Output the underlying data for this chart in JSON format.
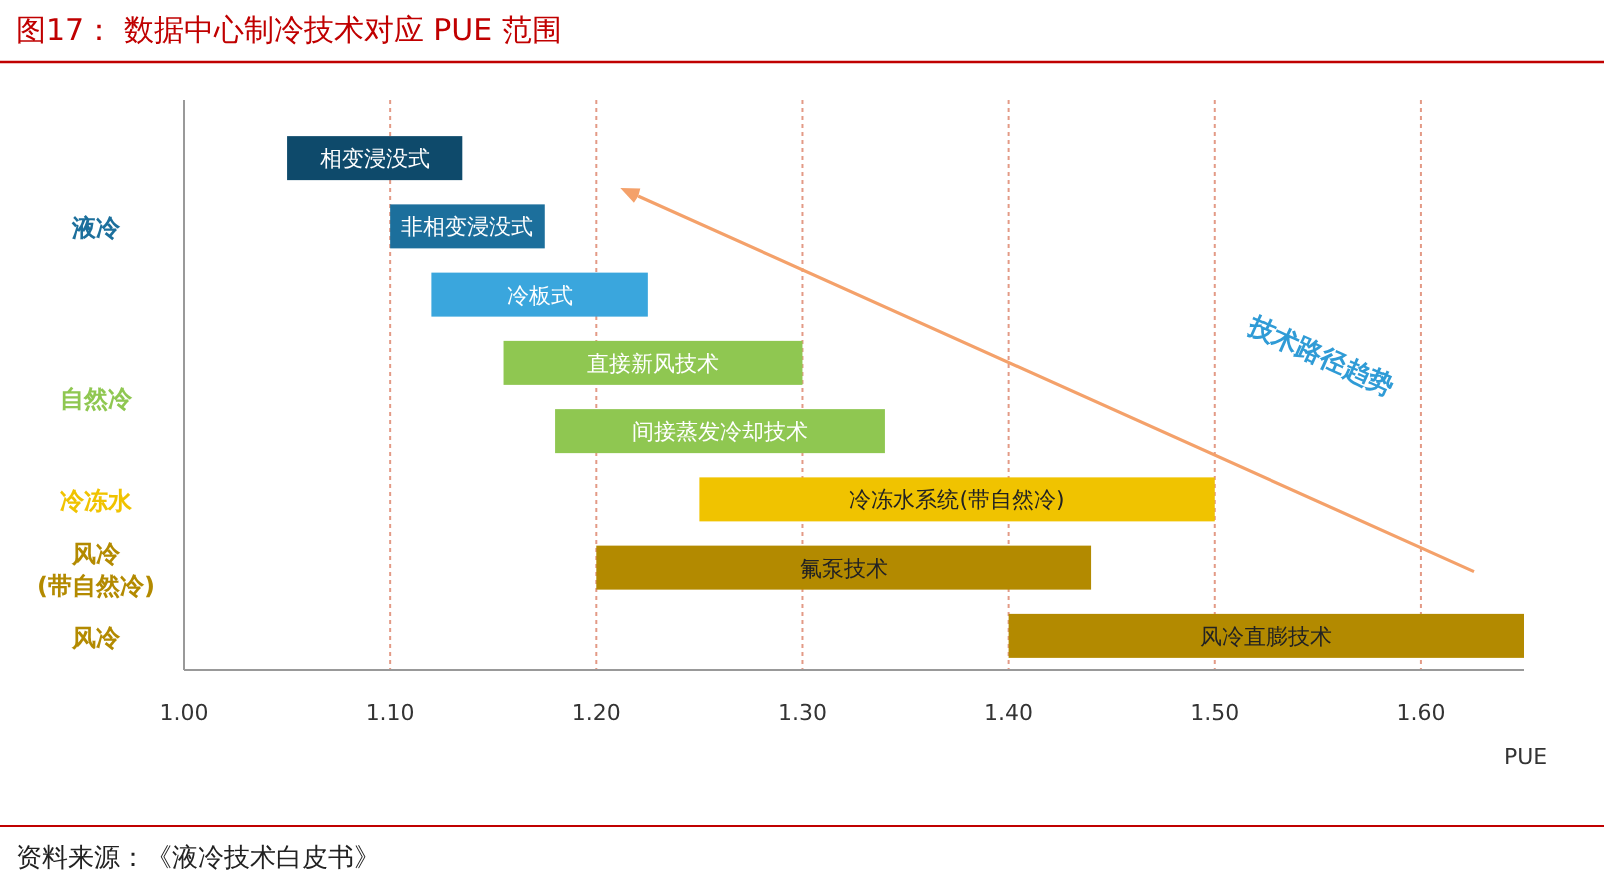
{
  "chart_data": {
    "type": "bar",
    "orientation": "horizontal",
    "title": "图17：  数据中心制冷技术对应 PUE 范围",
    "xlabel": "PUE",
    "categories": [
      "相变浸没式",
      "非相变浸没式",
      "冷板式",
      "直接新风技术",
      "间接蒸发冷却技术",
      "冷冻水系统(带自然冷)",
      "氟泵技术",
      "风冷直膨技术"
    ],
    "base": [
      1.05,
      1.1,
      1.12,
      1.155,
      1.18,
      1.25,
      1.2,
      1.4
    ],
    "values": [
      0.085,
      0.075,
      0.105,
      0.145,
      0.16,
      0.25,
      0.24,
      0.25
    ],
    "colors": [
      "#0e4a6b",
      "#1c6f9c",
      "#3aa6dd",
      "#8fc751",
      "#8fc751",
      "#f0c300",
      "#b38a00",
      "#b38a00"
    ],
    "xlim": [
      1.0,
      1.65
    ],
    "xticks": [
      {
        "value": 1.0,
        "label": "1.00"
      },
      {
        "value": 1.1,
        "label": "1.10"
      },
      {
        "value": 1.2,
        "label": "1.20"
      },
      {
        "value": 1.3,
        "label": "1.30"
      },
      {
        "value": 1.4,
        "label": "1.40"
      },
      {
        "value": 1.5,
        "label": "1.50"
      },
      {
        "value": 1.6,
        "label": "1.60"
      }
    ],
    "grid": "x",
    "annotations": [
      "液冷",
      "自然冷",
      "冷冻水",
      "风冷\n(带自然冷)",
      "风冷",
      "技术路径趋势",
      "资料来源：《液冷技术白皮书》"
    ]
  }
}
